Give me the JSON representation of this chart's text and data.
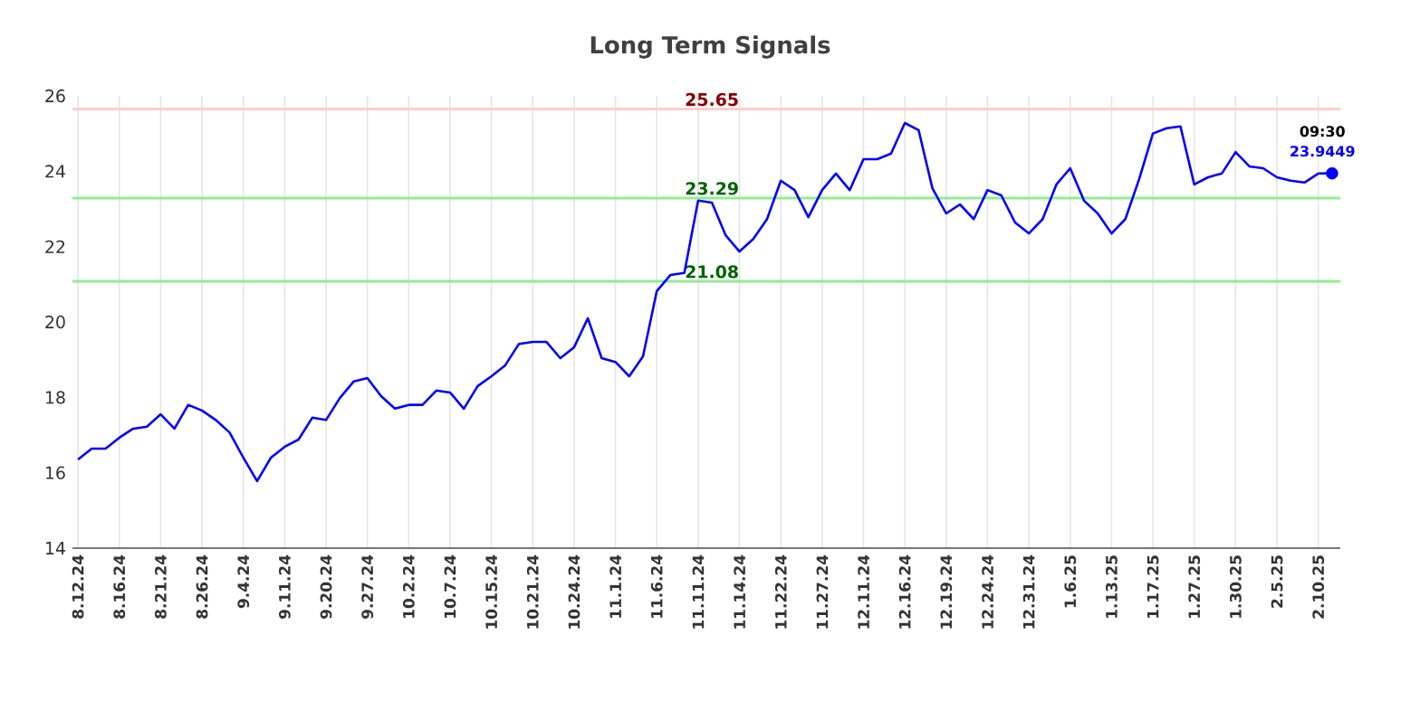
{
  "chart_data": {
    "type": "line",
    "title": "Long Term Signals",
    "categories": [
      "8.12.24",
      null,
      null,
      "8.16.24",
      null,
      null,
      "8.21.24",
      null,
      null,
      "8.26.24",
      null,
      null,
      "9.4.24",
      null,
      null,
      "9.11.24",
      null,
      null,
      "9.20.24",
      null,
      null,
      "9.27.24",
      null,
      null,
      "10.2.24",
      null,
      null,
      "10.7.24",
      null,
      null,
      "10.15.24",
      null,
      null,
      "10.21.24",
      null,
      null,
      "10.24.24",
      null,
      null,
      "11.1.24",
      null,
      null,
      "11.6.24",
      null,
      null,
      "11.11.24",
      null,
      null,
      "11.14.24",
      null,
      null,
      "11.22.24",
      null,
      null,
      "11.27.24",
      null,
      null,
      "12.11.24",
      null,
      null,
      "12.16.24",
      null,
      null,
      "12.19.24",
      null,
      null,
      "12.24.24",
      null,
      null,
      "12.31.24",
      null,
      null,
      "1.6.25",
      null,
      null,
      "1.13.25",
      null,
      null,
      "1.17.25",
      null,
      null,
      "1.27.25",
      null,
      null,
      "1.30.25",
      null,
      null,
      "2.5.25",
      null,
      null,
      "2.10.25",
      null
    ],
    "series": [
      {
        "color": "#0000ff",
        "values": [
          16.35,
          16.64,
          16.64,
          16.93,
          17.17,
          17.22,
          17.55,
          17.17,
          17.8,
          17.65,
          17.4,
          17.07,
          16.4,
          15.78,
          16.4,
          16.69,
          16.88,
          17.46,
          17.4,
          17.98,
          18.42,
          18.51,
          18.03,
          17.7,
          17.8,
          17.8,
          18.18,
          18.13,
          17.7,
          18.3,
          18.56,
          18.85,
          19.42,
          19.47,
          19.47,
          19.04,
          19.33,
          20.1,
          19.04,
          18.94,
          18.56,
          19.09,
          20.82,
          21.25,
          21.3,
          23.22,
          23.17,
          22.3,
          21.87,
          22.2,
          22.73,
          23.75,
          23.5,
          22.78,
          23.5,
          23.94,
          23.5,
          24.32,
          24.32,
          24.47,
          25.28,
          25.09,
          23.55,
          22.88,
          23.12,
          22.73,
          23.5,
          23.36,
          22.64,
          22.35,
          22.73,
          23.65,
          24.08,
          23.22,
          22.88,
          22.35,
          22.73,
          23.79,
          25.0,
          25.14,
          25.19,
          23.65,
          23.84,
          23.94,
          24.51,
          24.13,
          24.08,
          23.84,
          23.75,
          23.7,
          23.94,
          23.9449
        ]
      },
      {
        "type": "scatter",
        "marker": "circle",
        "color": "#0000ff",
        "values": [
          null,
          null,
          null,
          null,
          null,
          null,
          null,
          null,
          null,
          null,
          null,
          null,
          null,
          null,
          null,
          null,
          null,
          null,
          null,
          null,
          null,
          null,
          null,
          null,
          null,
          null,
          null,
          null,
          null,
          null,
          null,
          null,
          null,
          null,
          null,
          null,
          null,
          null,
          null,
          null,
          null,
          null,
          null,
          null,
          null,
          null,
          null,
          null,
          null,
          null,
          null,
          null,
          null,
          null,
          null,
          null,
          null,
          null,
          null,
          null,
          null,
          null,
          null,
          null,
          null,
          null,
          null,
          null,
          null,
          null,
          null,
          null,
          null,
          null,
          null,
          null,
          null,
          null,
          null,
          null,
          null,
          null,
          null,
          null,
          null,
          null,
          null,
          null,
          null,
          null,
          null,
          23.9449
        ]
      }
    ],
    "ylim": [
      14,
      26
    ],
    "yticks": [
      14,
      16,
      18,
      20,
      22,
      24,
      26
    ],
    "grid": true,
    "ref_lines": [
      {
        "axis": "y",
        "value": 25.65,
        "label": "25.65",
        "color": "#ffcccc"
      },
      {
        "axis": "y",
        "value": 23.29,
        "label": "23.29",
        "color": "#90ee90"
      },
      {
        "axis": "y",
        "value": 21.08,
        "label": "21.08",
        "color": "#90ee90"
      }
    ],
    "annotations": [
      {
        "text": "09:30",
        "y": 23.9449
      },
      {
        "text": "23.9449",
        "y": 23.9449
      }
    ]
  }
}
